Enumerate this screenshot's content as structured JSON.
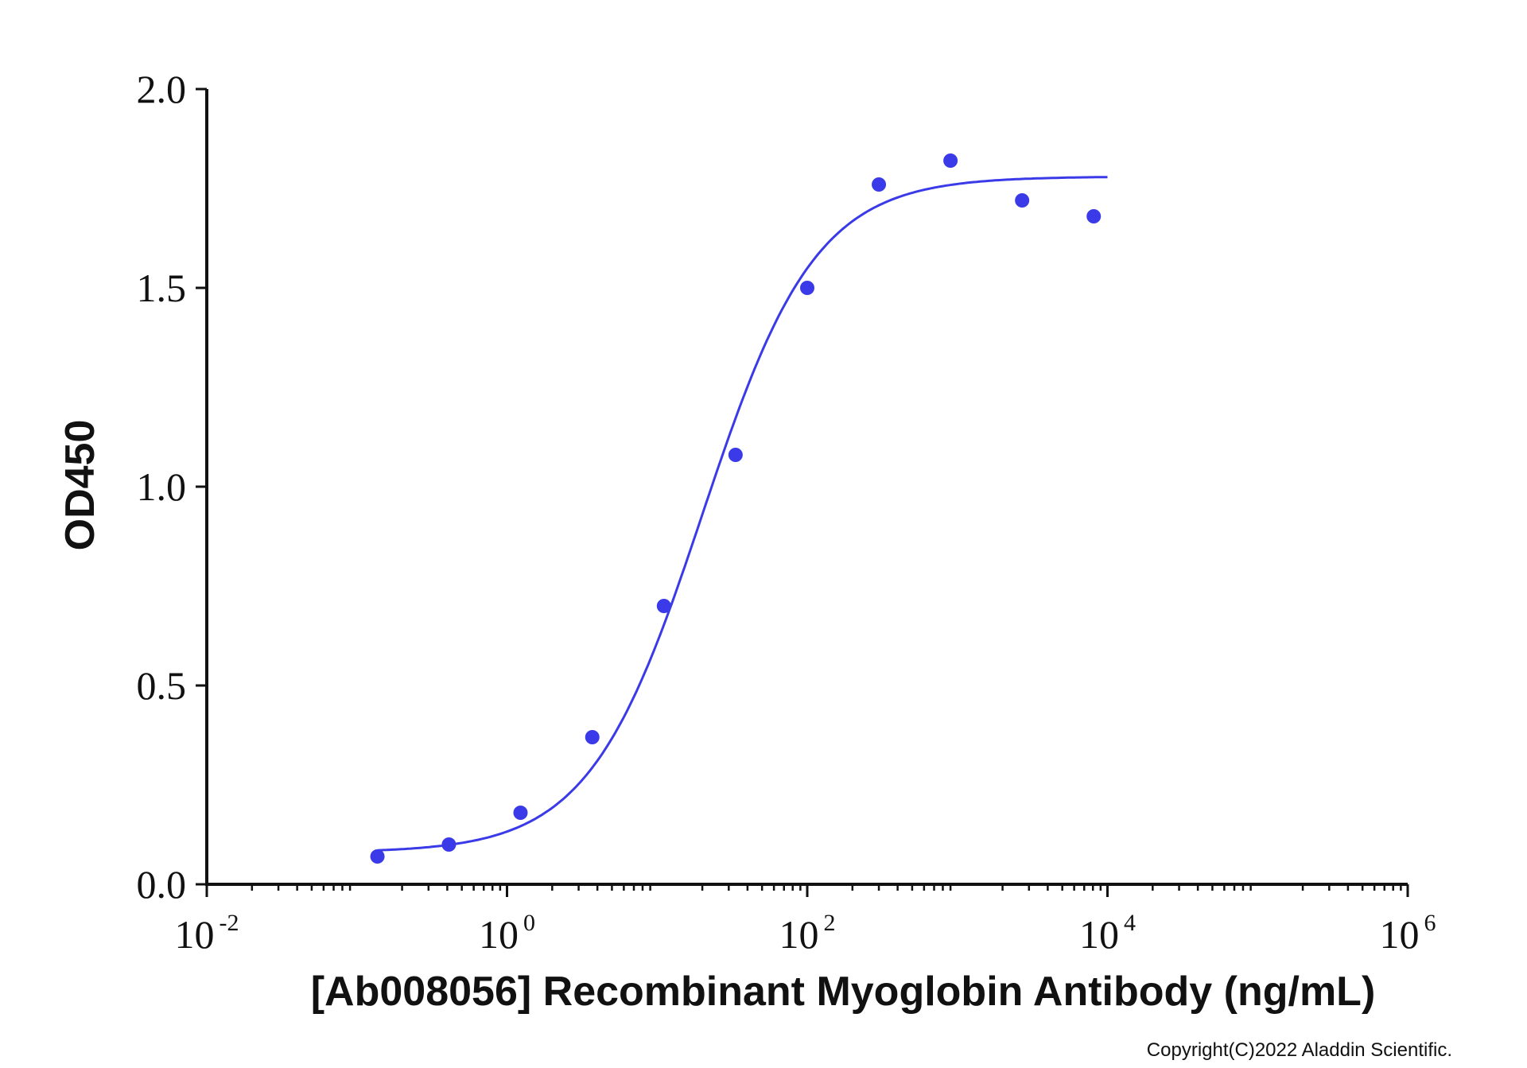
{
  "chart_data": {
    "type": "scatter",
    "title": "",
    "xlabel": "[Ab008056] Recombinant Myoglobin Antibody (ng/mL)",
    "ylabel": "OD450",
    "x_scale": "log",
    "xlim": [
      0.01,
      1000000
    ],
    "ylim": [
      0,
      2.0
    ],
    "x_ticks": [
      {
        "base": "10",
        "exp": "-2",
        "value": 0.01
      },
      {
        "base": "10",
        "exp": "0",
        "value": 1
      },
      {
        "base": "10",
        "exp": "2",
        "value": 100
      },
      {
        "base": "10",
        "exp": "4",
        "value": 10000
      },
      {
        "base": "10",
        "exp": "6",
        "value": 1000000
      }
    ],
    "y_ticks": [
      "0.0",
      "0.5",
      "1.0",
      "1.5",
      "2.0"
    ],
    "grid": false,
    "series": [
      {
        "color": "#3a3ae8",
        "points": [
          {
            "x": 0.137,
            "y": 0.07
          },
          {
            "x": 0.41,
            "y": 0.1
          },
          {
            "x": 1.23,
            "y": 0.18
          },
          {
            "x": 3.7,
            "y": 0.37
          },
          {
            "x": 11.1,
            "y": 0.7
          },
          {
            "x": 33.3,
            "y": 1.08
          },
          {
            "x": 100,
            "y": 1.5
          },
          {
            "x": 300,
            "y": 1.76
          },
          {
            "x": 900,
            "y": 1.82
          },
          {
            "x": 2700,
            "y": 1.72
          },
          {
            "x": 8100,
            "y": 1.68
          }
        ],
        "fit": {
          "model": "4PL",
          "bottom": 0.08,
          "top": 1.78,
          "ec50": 20,
          "hill": 1.15,
          "x_range": [
            0.137,
            10000
          ]
        }
      }
    ]
  },
  "footer": {
    "copyright": "Copyright(C)2022 Aladdin Scientific."
  }
}
